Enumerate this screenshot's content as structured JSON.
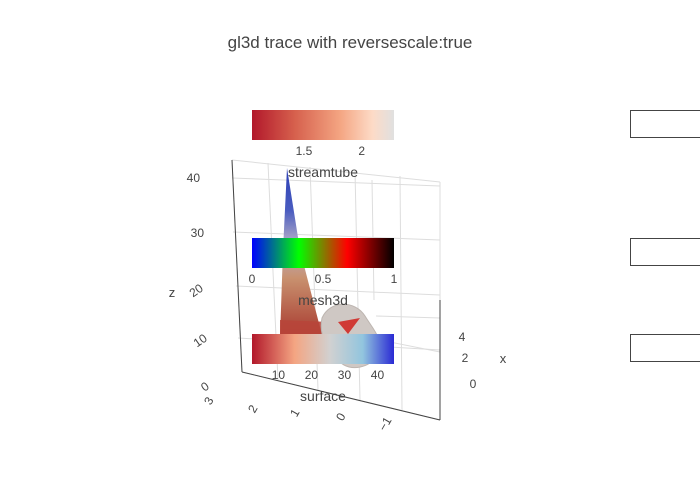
{
  "title": "gl3d trace with reversescale:true",
  "chart_data": {
    "type": "3d",
    "title": "gl3d trace with reversescale:true",
    "scene": {
      "x_axis": {
        "label": "x",
        "ticks": [
          "4",
          "2",
          "0"
        ]
      },
      "y_axis": {
        "label": "",
        "ticks": [
          "3",
          "2",
          "1",
          "0",
          "−1"
        ]
      },
      "z_axis": {
        "label": "z",
        "ticks": [
          "40",
          "30",
          "20",
          "10",
          "0"
        ]
      },
      "grid": true
    },
    "colorbars": [
      {
        "name": "streamtube",
        "tick_labels": [
          "1.5",
          "2"
        ],
        "tick_values": [
          1.5,
          2
        ],
        "range": [
          1.05,
          2.28
        ],
        "colors": [
          "#b2182b",
          "#d6604d",
          "#f4a582",
          "#fddbc7",
          "#e0e0e0"
        ]
      },
      {
        "name": "mesh3d",
        "tick_labels": [
          "0",
          "0.5",
          "1"
        ],
        "tick_values": [
          0,
          0.5,
          1
        ],
        "range": [
          0,
          1
        ],
        "colors": [
          "#0000ff",
          "#00ff00",
          "#ff0000",
          "#000000"
        ]
      },
      {
        "name": "surface",
        "tick_labels": [
          "10",
          "20",
          "30",
          "40"
        ],
        "tick_values": [
          10,
          20,
          30,
          40
        ],
        "range": [
          2,
          45
        ],
        "colors": [
          "#b2182b",
          "#f4a582",
          "#d1d1d1",
          "#92c5de",
          "#2a2ad4"
        ]
      }
    ]
  },
  "legend": {
    "item_count": 3
  }
}
